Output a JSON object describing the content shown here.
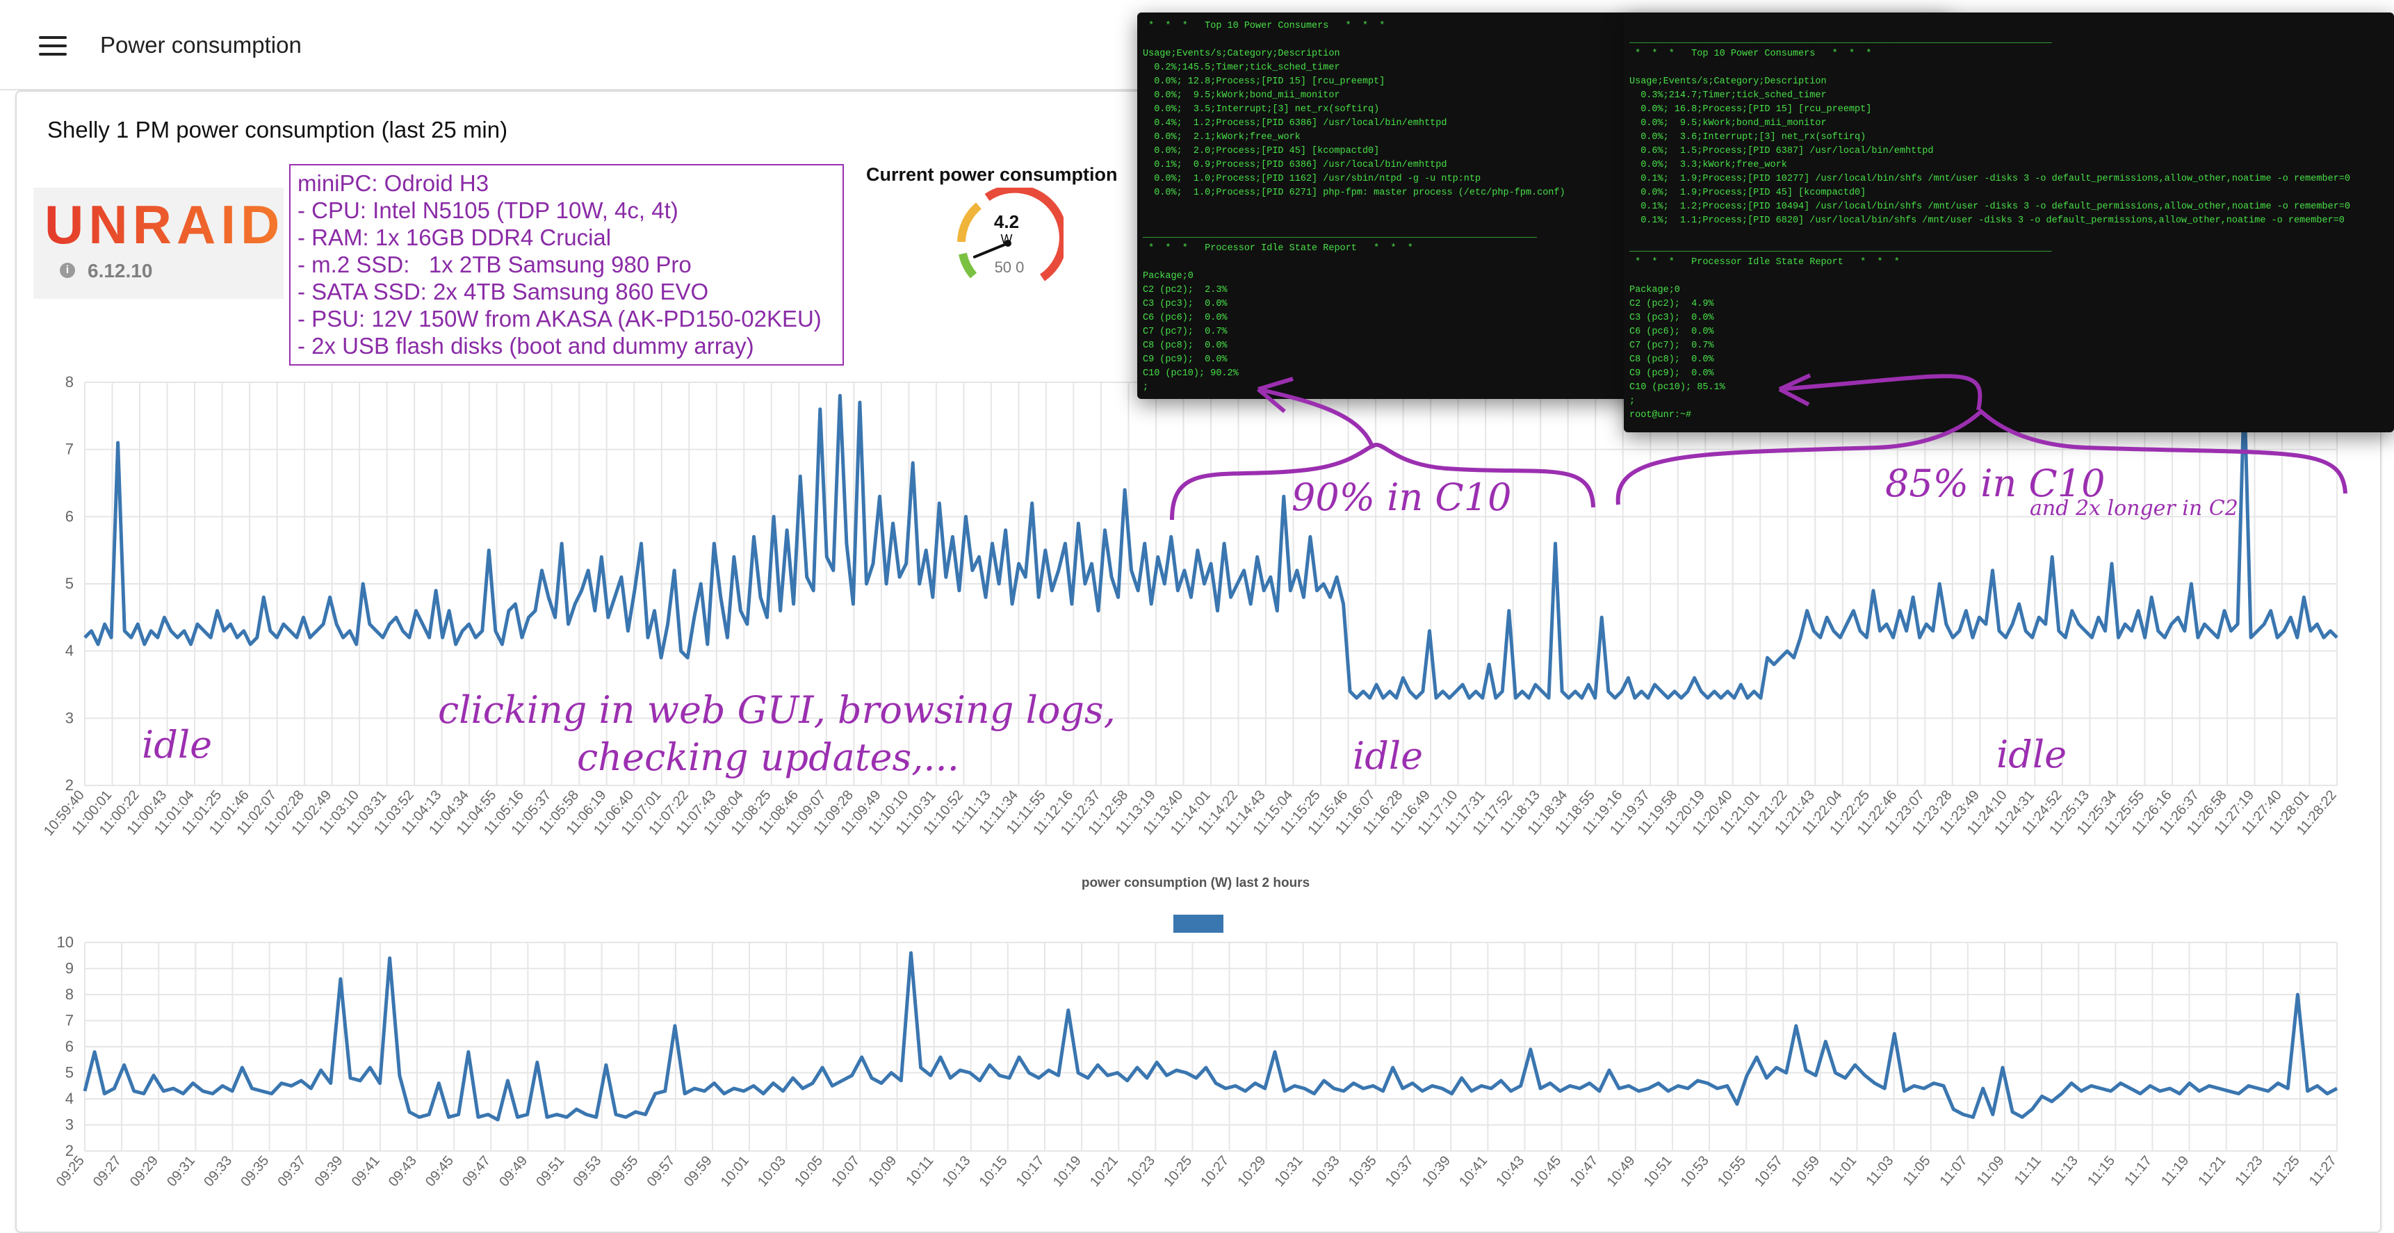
{
  "header": {
    "title": "Power consumption"
  },
  "card": {
    "title": "Shelly 1 PM power consumption (last 25 min)"
  },
  "unraid": {
    "logo_text": "UNRAID",
    "version": "6.12.10"
  },
  "specs": [
    "miniPC: Odroid H3",
    "- CPU: Intel N5105 (TDP 10W, 4c, 4t)",
    "- RAM: 1x 16GB DDR4 Crucial",
    "- m.2 SSD:   1x 2TB Samsung 980 Pro",
    "- SATA SSD: 2x 4TB Samsung 860 EVO",
    "- PSU: 12V 150W from AKASA (AK-PD150-02KEU)",
    "- 2x USB flash disks (boot and dummy array)"
  ],
  "gauge": {
    "title": "Current power consumption",
    "value": "4.2",
    "unit": "W",
    "min": "0",
    "max": "50",
    "fraction": 0.084
  },
  "terminal1": {
    "lines": [
      " *  *  *   Top 10 Power Consumers   *  *  *",
      "",
      "Usage;Events/s;Category;Description",
      "  0.2%;145.5;Timer;tick_sched_timer",
      "  0.0%; 12.8;Process;[PID 15] [rcu_preempt]",
      "  0.0%;  9.5;kWork;bond_mii_monitor",
      "  0.0%;  3.5;Interrupt;[3] net_rx(softirq)",
      "  0.4%;  1.2;Process;[PID 6386] /usr/local/bin/emhttpd",
      "  0.0%;  2.1;kWork;free_work",
      "  0.0%;  2.0;Process;[PID 45] [kcompactd0]",
      "  0.1%;  0.9;Process;[PID 6386] /usr/local/bin/emhttpd",
      "  0.0%;  1.0;Process;[PID 1162] /usr/sbin/ntpd -g -u ntp:ntp",
      "  0.0%;  1.0;Process;[PID 6271] php-fpm: master process (/etc/php-fpm.conf)",
      "",
      "",
      "______________________________________________________________________",
      " *  *  *   Processor Idle State Report   *  *  *",
      "",
      "Package;0",
      "C2 (pc2);  2.3%",
      "C3 (pc3);  0.0%",
      "C6 (pc6);  0.0%",
      "C7 (pc7);  0.7%",
      "C8 (pc8);  0.0%",
      "C9 (pc9);  0.0%",
      "C10 (pc10); 90.2%",
      ";"
    ]
  },
  "terminal2": {
    "lines": [
      "",
      "___________________________________________________________________________",
      " *  *  *   Top 10 Power Consumers   *  *  *",
      "",
      "Usage;Events/s;Category;Description",
      "  0.3%;214.7;Timer;tick_sched_timer",
      "  0.0%; 16.8;Process;[PID 15] [rcu_preempt]",
      "  0.0%;  9.5;kWork;bond_mii_monitor",
      "  0.0%;  3.6;Interrupt;[3] net_rx(softirq)",
      "  0.6%;  1.5;Process;[PID 6387] /usr/local/bin/emhttpd",
      "  0.0%;  3.3;kWork;free_work",
      "  0.1%;  1.9;Process;[PID 10277] /usr/local/bin/shfs /mnt/user -disks 3 -o default_permissions,allow_other,noatime -o remember=0",
      "  0.0%;  1.9;Process;[PID 45] [kcompactd0]",
      "  0.1%;  1.2;Process;[PID 10494] /usr/local/bin/shfs /mnt/user -disks 3 -o default_permissions,allow_other,noatime -o remember=0",
      "  0.1%;  1.1;Process;[PID 6820] /usr/local/bin/shfs /mnt/user -disks 3 -o default_permissions,allow_other,noatime -o remember=0",
      "",
      "___________________________________________________________________________",
      " *  *  *   Processor Idle State Report   *  *  *",
      "",
      "Package;0",
      "C2 (pc2);  4.9%",
      "C3 (pc3);  0.0%",
      "C6 (pc6);  0.0%",
      "C7 (pc7);  0.7%",
      "C8 (pc8);  0.0%",
      "C9 (pc9);  0.0%",
      "C10 (pc10); 85.1%",
      ";",
      "root@unr:~#"
    ]
  },
  "annotations": {
    "idle": "idle",
    "clicking_line1": "clicking in web GUI, browsing logs,",
    "clicking_line2": "checking updates,...",
    "c10_90": "90% in C10",
    "c10_85": "85% in C10",
    "c2_note": "and 2x longer in C2"
  },
  "colors": {
    "line": "#3a76b0",
    "annotation": "#9b2fb0",
    "terminal_text": "#47e047"
  },
  "chart_data": [
    {
      "type": "line",
      "title": "",
      "ylim": [
        2,
        8
      ],
      "yticks": [
        2,
        3,
        4,
        5,
        6,
        7,
        8
      ],
      "grid": true,
      "x_ticks": [
        "10:59:40",
        "11:00:01",
        "11:00:22",
        "11:00:43",
        "11:01:04",
        "11:01:25",
        "11:01:46",
        "11:02:07",
        "11:02:28",
        "11:02:49",
        "11:03:10",
        "11:03:31",
        "11:03:52",
        "11:04:13",
        "11:04:34",
        "11:04:55",
        "11:05:16",
        "11:05:37",
        "11:05:58",
        "11:06:19",
        "11:06:40",
        "11:07:01",
        "11:07:22",
        "11:07:43",
        "11:08:04",
        "11:08:25",
        "11:08:46",
        "11:09:07",
        "11:09:28",
        "11:09:49",
        "11:10:10",
        "11:10:31",
        "11:10:52",
        "11:11:13",
        "11:11:34",
        "11:11:55",
        "11:12:16",
        "11:12:37",
        "11:12:58",
        "11:13:19",
        "11:13:40",
        "11:14:01",
        "11:14:22",
        "11:14:43",
        "11:15:04",
        "11:15:25",
        "11:15:46",
        "11:16:07",
        "11:16:28",
        "11:16:49",
        "11:17:10",
        "11:17:31",
        "11:17:52",
        "11:18:13",
        "11:18:34",
        "11:18:55",
        "11:19:16",
        "11:19:37",
        "11:19:58",
        "11:20:19",
        "11:20:40",
        "11:21:01",
        "11:21:22",
        "11:21:43",
        "11:22:04",
        "11:22:25",
        "11:22:46",
        "11:23:07",
        "11:23:28",
        "11:23:49",
        "11:24:10",
        "11:24:31",
        "11:24:52",
        "11:25:13",
        "11:25:34",
        "11:25:55",
        "11:26:16",
        "11:26:37",
        "11:26:58",
        "11:27:19",
        "11:27:40",
        "11:28:01",
        "11:28:22"
      ],
      "series": [
        {
          "values": [
            4.2,
            4.3,
            4.1,
            4.4,
            4.2,
            7.1,
            4.3,
            4.2,
            4.4,
            4.1,
            4.3,
            4.2,
            4.5,
            4.3,
            4.2,
            4.3,
            4.1,
            4.4,
            4.3,
            4.2,
            4.6,
            4.3,
            4.4,
            4.2,
            4.3,
            4.1,
            4.2,
            4.8,
            4.3,
            4.2,
            4.4,
            4.3,
            4.2,
            4.5,
            4.2,
            4.3,
            4.4,
            4.8,
            4.4,
            4.2,
            4.3,
            4.1,
            5.0,
            4.4,
            4.3,
            4.2,
            4.4,
            4.5,
            4.3,
            4.2,
            4.6,
            4.4,
            4.2,
            4.9,
            4.2,
            4.6,
            4.1,
            4.3,
            4.4,
            4.2,
            4.3,
            5.5,
            4.3,
            4.1,
            4.6,
            4.7,
            4.2,
            4.5,
            4.6,
            5.2,
            4.8,
            4.5,
            5.6,
            4.4,
            4.7,
            4.9,
            5.2,
            4.6,
            5.4,
            4.5,
            4.8,
            5.1,
            4.3,
            4.9,
            5.6,
            4.2,
            4.6,
            3.9,
            4.4,
            5.2,
            4.0,
            3.9,
            4.5,
            5.0,
            4.1,
            5.6,
            4.8,
            4.2,
            5.4,
            4.6,
            4.4,
            5.7,
            4.8,
            4.5,
            6.0,
            4.6,
            5.8,
            4.7,
            6.6,
            5.1,
            4.9,
            7.6,
            5.4,
            5.2,
            7.8,
            5.6,
            4.7,
            7.7,
            5.0,
            5.3,
            6.3,
            5.0,
            5.9,
            5.1,
            5.3,
            6.8,
            5.0,
            5.5,
            4.8,
            6.2,
            5.1,
            5.7,
            4.9,
            6.0,
            5.2,
            5.4,
            4.8,
            5.6,
            5.0,
            5.8,
            4.7,
            5.3,
            5.1,
            6.2,
            4.8,
            5.5,
            4.9,
            5.2,
            5.6,
            4.7,
            5.9,
            5.0,
            5.3,
            4.6,
            5.8,
            5.1,
            4.8,
            6.4,
            5.2,
            4.9,
            5.6,
            4.7,
            5.4,
            5.0,
            5.7,
            4.9,
            5.2,
            4.8,
            5.5,
            5.0,
            5.3,
            4.6,
            5.6,
            4.8,
            5.0,
            5.2,
            4.7,
            5.4,
            4.9,
            5.1,
            4.6,
            6.3,
            4.9,
            5.2,
            4.8,
            5.7,
            4.9,
            5.0,
            4.8,
            5.1,
            4.7,
            3.4,
            3.3,
            3.4,
            3.3,
            3.5,
            3.3,
            3.4,
            3.3,
            3.6,
            3.4,
            3.3,
            3.4,
            4.3,
            3.3,
            3.4,
            3.3,
            3.4,
            3.5,
            3.3,
            3.4,
            3.3,
            3.8,
            3.3,
            3.4,
            4.6,
            3.3,
            3.4,
            3.3,
            3.5,
            3.4,
            3.3,
            5.6,
            3.4,
            3.3,
            3.4,
            3.3,
            3.5,
            3.3,
            4.5,
            3.4,
            3.3,
            3.4,
            3.6,
            3.3,
            3.4,
            3.3,
            3.5,
            3.4,
            3.3,
            3.4,
            3.3,
            3.4,
            3.6,
            3.4,
            3.3,
            3.4,
            3.3,
            3.4,
            3.3,
            3.5,
            3.3,
            3.4,
            3.3,
            3.9,
            3.8,
            3.9,
            4.0,
            3.9,
            4.2,
            4.6,
            4.3,
            4.2,
            4.5,
            4.3,
            4.2,
            4.4,
            4.6,
            4.3,
            4.2,
            4.9,
            4.3,
            4.4,
            4.2,
            4.6,
            4.3,
            4.8,
            4.2,
            4.4,
            4.3,
            5.0,
            4.4,
            4.2,
            4.3,
            4.6,
            4.2,
            4.5,
            4.4,
            5.2,
            4.3,
            4.2,
            4.4,
            4.7,
            4.3,
            4.2,
            4.5,
            4.4,
            5.4,
            4.3,
            4.2,
            4.6,
            4.4,
            4.3,
            4.2,
            4.5,
            4.3,
            5.3,
            4.2,
            4.4,
            4.3,
            4.6,
            4.2,
            4.8,
            4.3,
            4.2,
            4.4,
            4.5,
            4.3,
            5.0,
            4.2,
            4.4,
            4.3,
            4.2,
            4.6,
            4.3,
            4.4,
            7.9,
            4.2,
            4.3,
            4.4,
            4.6,
            4.2,
            4.3,
            4.5,
            4.2,
            4.8,
            4.3,
            4.4,
            4.2,
            4.3,
            4.2
          ]
        }
      ]
    },
    {
      "type": "line",
      "title": "power consumption (W) last 2 hours",
      "ylim": [
        2,
        10
      ],
      "yticks": [
        2,
        3,
        4,
        5,
        6,
        7,
        8,
        9,
        10
      ],
      "grid": true,
      "legend": "top",
      "x_ticks": [
        "09:25",
        "09:27",
        "09:29",
        "09:31",
        "09:33",
        "09:35",
        "09:37",
        "09:39",
        "09:41",
        "09:43",
        "09:45",
        "09:47",
        "09:49",
        "09:51",
        "09:53",
        "09:55",
        "09:57",
        "09:59",
        "10:01",
        "10:03",
        "10:05",
        "10:07",
        "10:09",
        "10:11",
        "10:13",
        "10:15",
        "10:17",
        "10:19",
        "10:21",
        "10:23",
        "10:25",
        "10:27",
        "10:29",
        "10:31",
        "10:33",
        "10:35",
        "10:37",
        "10:39",
        "10:41",
        "10:43",
        "10:45",
        "10:47",
        "10:49",
        "10:51",
        "10:53",
        "10:55",
        "10:57",
        "10:59",
        "11:01",
        "11:03",
        "11:05",
        "11:07",
        "11:09",
        "11:11",
        "11:13",
        "11:15",
        "11:17",
        "11:19",
        "11:21",
        "11:23",
        "11:25",
        "11:27"
      ],
      "series": [
        {
          "values": [
            4.3,
            5.8,
            4.2,
            4.4,
            5.3,
            4.3,
            4.2,
            4.9,
            4.3,
            4.4,
            4.2,
            4.6,
            4.3,
            4.2,
            4.5,
            4.3,
            5.2,
            4.4,
            4.3,
            4.2,
            4.6,
            4.5,
            4.7,
            4.4,
            5.1,
            4.6,
            8.6,
            4.8,
            4.7,
            5.2,
            4.6,
            9.4,
            4.9,
            3.5,
            3.3,
            3.4,
            4.6,
            3.3,
            3.4,
            5.8,
            3.3,
            3.4,
            3.2,
            4.7,
            3.3,
            3.4,
            5.4,
            3.3,
            3.4,
            3.3,
            3.6,
            3.4,
            3.3,
            5.3,
            3.4,
            3.3,
            3.5,
            3.4,
            4.2,
            4.3,
            6.8,
            4.2,
            4.4,
            4.3,
            4.6,
            4.2,
            4.4,
            4.3,
            4.5,
            4.2,
            4.6,
            4.3,
            4.8,
            4.4,
            4.6,
            5.2,
            4.5,
            4.7,
            4.9,
            5.6,
            4.8,
            4.6,
            5.0,
            4.7,
            9.6,
            5.2,
            4.9,
            5.6,
            4.8,
            5.1,
            5.0,
            4.7,
            5.3,
            4.9,
            4.8,
            5.6,
            5.0,
            4.8,
            5.1,
            4.9,
            7.4,
            5.0,
            4.8,
            5.3,
            4.9,
            5.0,
            4.7,
            5.2,
            4.8,
            5.4,
            4.9,
            5.1,
            5.0,
            4.8,
            5.2,
            4.6,
            4.4,
            4.5,
            4.3,
            4.6,
            4.4,
            5.8,
            4.3,
            4.5,
            4.4,
            4.2,
            4.7,
            4.4,
            4.3,
            4.6,
            4.4,
            4.5,
            4.3,
            5.2,
            4.4,
            4.6,
            4.3,
            4.5,
            4.4,
            4.2,
            4.8,
            4.3,
            4.5,
            4.4,
            4.7,
            4.3,
            4.5,
            5.9,
            4.4,
            4.6,
            4.3,
            4.5,
            4.4,
            4.6,
            4.3,
            5.1,
            4.4,
            4.5,
            4.3,
            4.4,
            4.6,
            4.3,
            4.5,
            4.4,
            4.7,
            4.6,
            4.4,
            4.5,
            3.8,
            4.9,
            5.6,
            4.8,
            5.2,
            5.0,
            6.8,
            5.1,
            4.9,
            6.2,
            5.0,
            4.8,
            5.3,
            4.9,
            4.6,
            4.4,
            6.5,
            4.3,
            4.5,
            4.4,
            4.6,
            4.5,
            3.6,
            3.4,
            3.3,
            4.4,
            3.4,
            5.2,
            3.5,
            3.3,
            3.6,
            4.1,
            3.9,
            4.2,
            4.6,
            4.3,
            4.5,
            4.4,
            4.3,
            4.6,
            4.4,
            4.2,
            4.5,
            4.3,
            4.4,
            4.2,
            4.6,
            4.3,
            4.5,
            4.4,
            4.3,
            4.2,
            4.5,
            4.4,
            4.3,
            4.6,
            4.4,
            8.0,
            4.3,
            4.5,
            4.2,
            4.4
          ]
        }
      ]
    }
  ]
}
